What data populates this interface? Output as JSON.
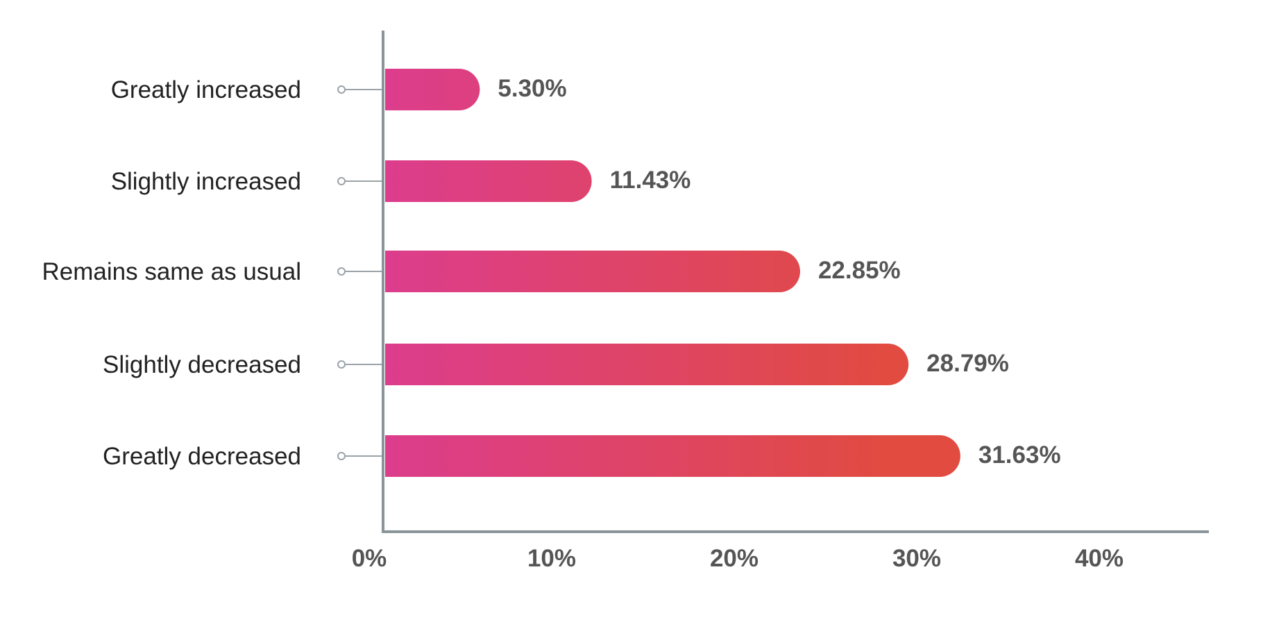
{
  "chart_data": {
    "type": "bar",
    "orientation": "horizontal",
    "categories": [
      "Greatly increased",
      "Slightly increased",
      "Remains same as usual",
      "Slightly decreased",
      "Greatly decreased"
    ],
    "values": [
      5.3,
      11.43,
      22.85,
      28.79,
      31.63
    ],
    "value_labels": [
      "5.30%",
      "11.43%",
      "22.85%",
      "28.79%",
      "31.63%"
    ],
    "xlim": [
      0,
      43
    ],
    "x_ticks": [
      0,
      10,
      20,
      30,
      40
    ],
    "x_tick_labels": [
      "0%",
      "10%",
      "20%",
      "30%",
      "40%"
    ],
    "grid": false,
    "legend": "none",
    "colors": {
      "bar_gradient_start": "#dc3d8d",
      "bar_gradient_end": "#e14b40",
      "axis": "#8a9499",
      "connector": "#9aa3a8"
    }
  }
}
